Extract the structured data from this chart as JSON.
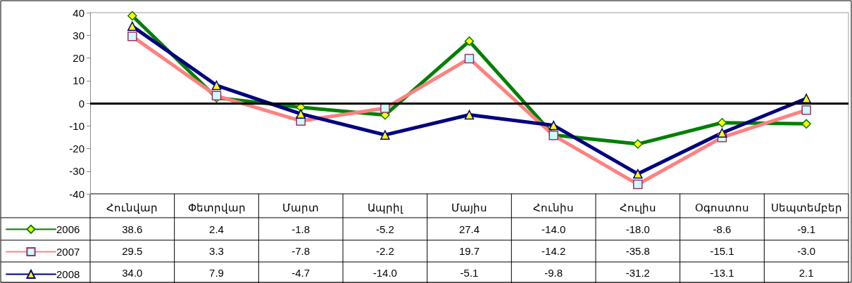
{
  "chart_data": {
    "type": "line",
    "categories": [
      "Հունվար",
      "Փետրվար",
      "Մարտ",
      "Ապրիլ",
      "Մայիս",
      "Հունիս",
      "Հուլիս",
      "Օգոստոս",
      "Սեպտեմբեր"
    ],
    "series": [
      {
        "name": "2006",
        "color": "#008000",
        "marker": "diamond",
        "values": [
          38.6,
          2.4,
          -1.8,
          -5.2,
          27.4,
          -14.0,
          -18.0,
          -8.6,
          -9.1
        ],
        "value_labels": [
          "38.6",
          "2.4",
          "-1.8",
          "-5.2",
          "27.4",
          "-14.0",
          "-18.0",
          "-8.6",
          "-9.1"
        ]
      },
      {
        "name": "2007",
        "color": "#ff8080",
        "marker": "square",
        "values": [
          29.5,
          3.3,
          -7.8,
          -2.2,
          19.7,
          -14.2,
          -35.8,
          -15.1,
          -3.0
        ],
        "value_labels": [
          "29.5",
          "3.3",
          "-7.8",
          "-2.2",
          "19.7",
          "-14.2",
          "-35.8",
          "-15.1",
          "-3.0"
        ]
      },
      {
        "name": "2008",
        "color": "#000080",
        "marker": "triangle",
        "values": [
          34.0,
          7.9,
          -4.7,
          -14.0,
          -5.1,
          -9.8,
          -31.2,
          -13.1,
          2.1
        ],
        "value_labels": [
          "34.0",
          "7.9",
          "-4.7",
          "-14.0",
          "-5.1",
          "-9.8",
          "-31.2",
          "-13.1",
          "2.1"
        ]
      }
    ],
    "ylim": [
      -40,
      40
    ],
    "yticks": [
      -40,
      -30,
      -20,
      -10,
      0,
      10,
      20,
      30,
      40
    ],
    "ref_lines": [
      {
        "axis": "y",
        "value": 0,
        "color": "#000000"
      }
    ],
    "grid": false,
    "legend": "bottom left",
    "line_style": "solid"
  }
}
